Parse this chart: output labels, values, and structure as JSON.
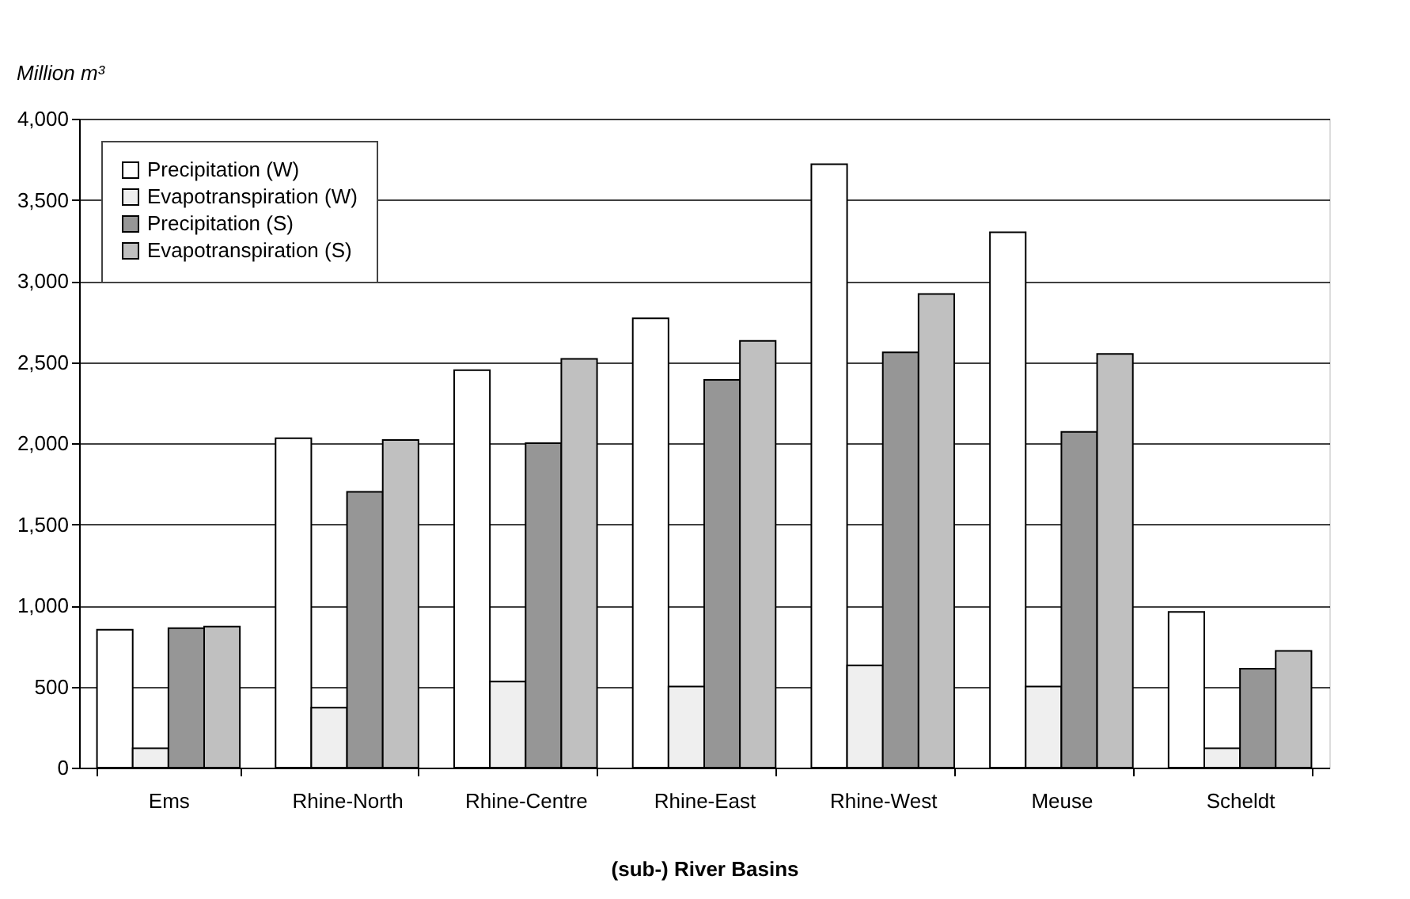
{
  "chart_data": {
    "type": "bar",
    "ylabel": "Million m³",
    "xlabel": "(sub-) River Basins",
    "categories": [
      "Ems",
      "Rhine-North",
      "Rhine-Centre",
      "Rhine-East",
      "Rhine-West",
      "Meuse",
      "Scheldt"
    ],
    "series": [
      {
        "name": "Precipitation (W)",
        "color": "#ffffff",
        "values": [
          850,
          2030,
          2450,
          2770,
          3720,
          3300,
          960
        ]
      },
      {
        "name": "Evapotranspiration (W)",
        "color": "#efefef",
        "values": [
          120,
          370,
          530,
          500,
          630,
          500,
          120
        ]
      },
      {
        "name": "Precipitation (S)",
        "color": "#969696",
        "values": [
          860,
          1700,
          2000,
          2390,
          2560,
          2070,
          610
        ]
      },
      {
        "name": "Evapotranspiration (S)",
        "color": "#c0c0c0",
        "values": [
          870,
          2020,
          2520,
          2630,
          2920,
          2550,
          720
        ]
      }
    ],
    "ylim": [
      0,
      4000
    ],
    "yticks": [
      0,
      500,
      {
        "value": 1000,
        "label": "1,000"
      },
      {
        "value": 1500,
        "label": "1,500"
      },
      {
        "value": 2000,
        "label": "2,000"
      },
      {
        "value": 2500,
        "label": "2,500"
      },
      {
        "value": 3000,
        "label": "3,000"
      },
      {
        "value": 3500,
        "label": "3,500"
      },
      {
        "value": 4000,
        "label": "4,000"
      }
    ],
    "grid": "y",
    "legend": "top left"
  }
}
